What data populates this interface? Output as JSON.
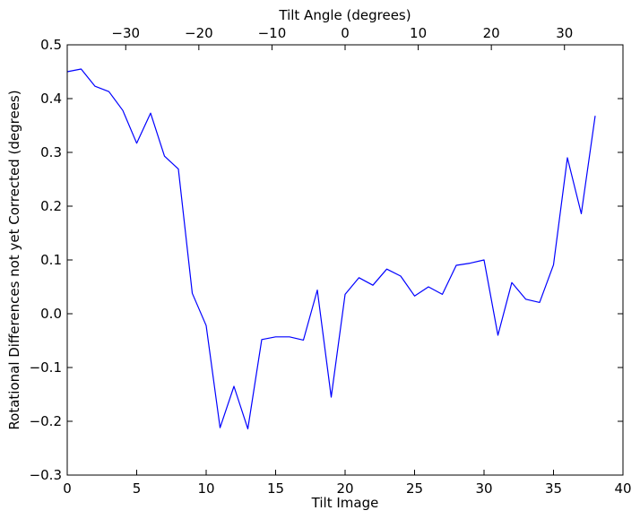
{
  "chart_data": {
    "type": "line",
    "xlabel": "Tilt Image",
    "ylabel": "Rotational Differences not yet Corrected (degrees)",
    "x2label": "Tilt Angle (degrees)",
    "xlim": [
      0,
      40
    ],
    "ylim": [
      -0.3,
      0.5
    ],
    "x2lim": [
      -38,
      38
    ],
    "xticks": [
      0,
      5,
      10,
      15,
      20,
      25,
      30,
      35,
      40
    ],
    "yticks": [
      -0.3,
      -0.2,
      -0.1,
      0.0,
      0.1,
      0.2,
      0.3,
      0.4,
      0.5
    ],
    "x2ticks": [
      -30,
      -20,
      -10,
      0,
      10,
      20,
      30
    ],
    "grid": false,
    "line_color": "#0000ff",
    "x": [
      0,
      1,
      2,
      3,
      4,
      5,
      6,
      7,
      8,
      9,
      10,
      11,
      12,
      13,
      14,
      15,
      16,
      17,
      18,
      19,
      20,
      21,
      22,
      23,
      24,
      25,
      26,
      27,
      28,
      29,
      30,
      31,
      32,
      33,
      34,
      35,
      36,
      37,
      38
    ],
    "values": [
      0.45,
      0.455,
      0.423,
      0.413,
      0.378,
      0.317,
      0.373,
      0.293,
      0.269,
      0.038,
      -0.022,
      -0.212,
      -0.135,
      -0.214,
      -0.048,
      -0.043,
      -0.043,
      -0.049,
      0.044,
      -0.155,
      0.036,
      0.067,
      0.053,
      0.083,
      0.07,
      0.033,
      0.05,
      0.036,
      0.09,
      0.094,
      0.1,
      -0.04,
      0.058,
      0.027,
      0.021,
      0.091,
      0.29,
      0.186,
      0.368
    ]
  }
}
